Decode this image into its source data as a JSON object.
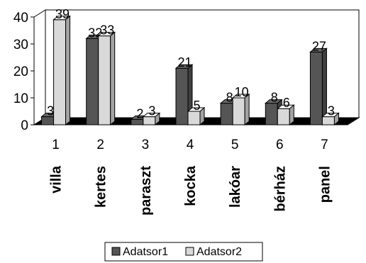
{
  "chart_data": {
    "type": "bar",
    "categories": [
      "1",
      "2",
      "3",
      "4",
      "5",
      "6",
      "7"
    ],
    "category_names": [
      "villa",
      "kertes",
      "paraszt",
      "kocka",
      "lakóar",
      "bérház",
      "panel"
    ],
    "series": [
      {
        "name": "Adatsor1",
        "values": [
          3,
          32,
          2,
          21,
          8,
          8,
          27
        ],
        "color": "#555555"
      },
      {
        "name": "Adatsor2",
        "values": [
          39,
          33,
          3,
          5,
          10,
          6,
          3
        ],
        "color": "#d9d9d9"
      }
    ],
    "ylim": [
      0,
      40
    ],
    "yticks": [
      0,
      10,
      20,
      30,
      40
    ],
    "grid": false,
    "legend": "bottom",
    "style": "3d-clustered"
  }
}
